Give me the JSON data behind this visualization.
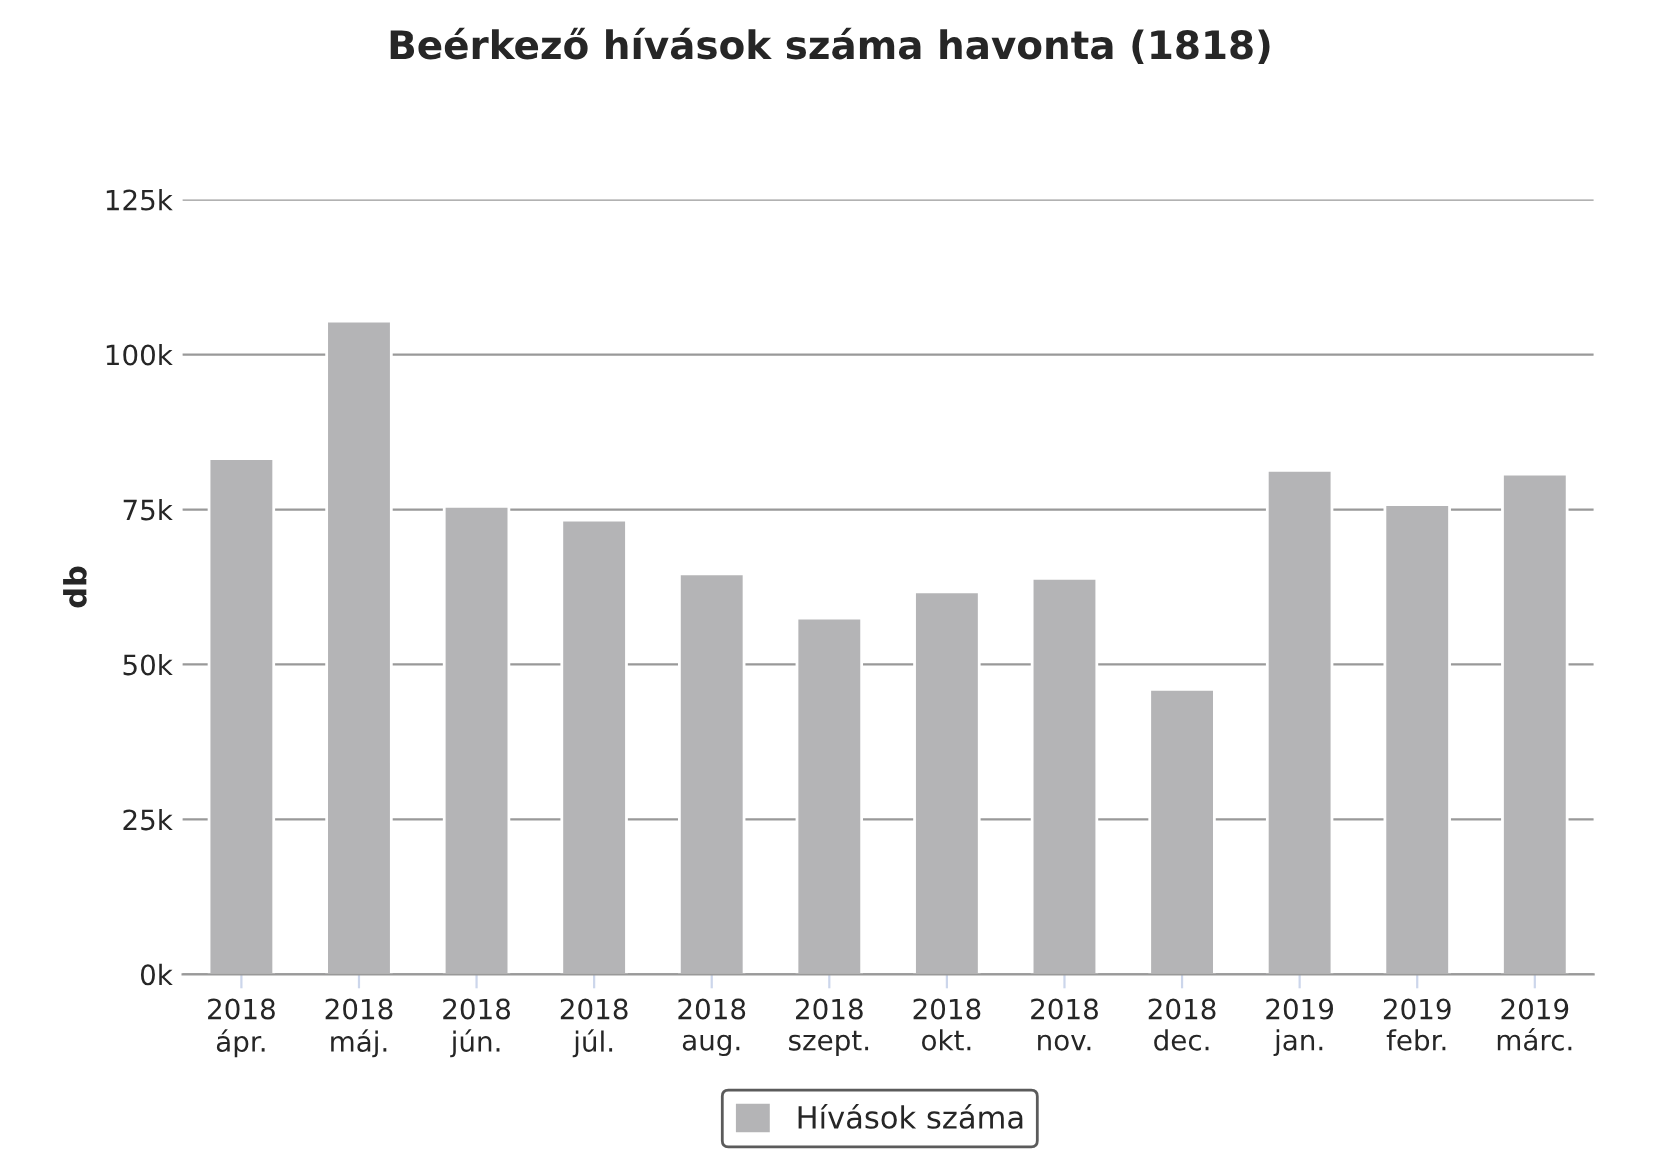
{
  "chart_data": {
    "type": "bar",
    "title": "Beérkező hívások száma havonta (1818)",
    "ylabel": "db",
    "categories": [
      "2018\nápr.",
      "2018\nmáj.",
      "2018\njún.",
      "2018\njúl.",
      "2018\naug.",
      "2018\nszept.",
      "2018\nokt.",
      "2018\nnov.",
      "2018\ndec.",
      "2019\njan.",
      "2019\nfebr.",
      "2019\nmárc."
    ],
    "series": [
      {
        "name": "Hívások száma",
        "color": "#b4b4b6",
        "values": [
          83200,
          105400,
          75500,
          73300,
          64600,
          57500,
          61700,
          63900,
          46000,
          81300,
          75800,
          80700
        ]
      }
    ],
    "ylim": [
      0,
      125000
    ],
    "yticks": [
      {
        "value": 0,
        "label": "0k"
      },
      {
        "value": 25000,
        "label": "25k"
      },
      {
        "value": 50000,
        "label": "50k"
      },
      {
        "value": 75000,
        "label": "75k"
      },
      {
        "value": 100000,
        "label": "100k"
      },
      {
        "value": 125000,
        "label": "125k"
      }
    ],
    "grid": "y",
    "legend": "bottom"
  }
}
